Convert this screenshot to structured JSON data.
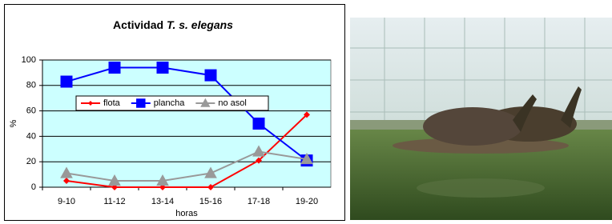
{
  "chart_data": {
    "type": "line",
    "title": "Actividad",
    "title_species": "T. s. elegans",
    "x_label": "horas",
    "y_label": "%",
    "categories": [
      "9-10",
      "11-12",
      "13-14",
      "15-16",
      "17-18",
      "19-20"
    ],
    "series": [
      {
        "name": "flota",
        "color": "#ff0000",
        "marker": "diamond",
        "values": [
          5,
          0,
          0,
          0,
          21,
          57
        ]
      },
      {
        "name": "plancha",
        "color": "#0000ff",
        "marker": "square",
        "values": [
          83,
          94,
          94,
          88,
          50,
          21
        ]
      },
      {
        "name": "no asol",
        "color": "#999999",
        "marker": "triangle",
        "values": [
          11,
          5,
          5,
          11,
          28,
          22
        ]
      }
    ],
    "ylim": [
      0,
      100
    ],
    "yticks": [
      0,
      20,
      40,
      60,
      80,
      100
    ],
    "grid": true,
    "legend": "center",
    "plot_background": "#ccffff"
  }
}
